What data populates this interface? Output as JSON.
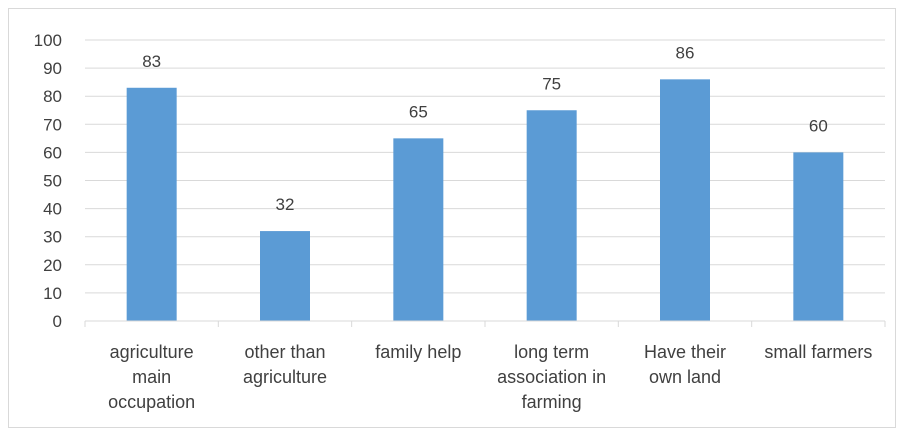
{
  "chart_data": {
    "type": "bar",
    "title": "",
    "xlabel": "",
    "ylabel": "",
    "ylim": [
      0,
      100
    ],
    "yticks": [
      0,
      10,
      20,
      30,
      40,
      50,
      60,
      70,
      80,
      90,
      100
    ],
    "grid": true,
    "legend": "none",
    "bar_color": "#5b9bd5",
    "categories": [
      [
        "agriculture",
        "main",
        "occupation"
      ],
      [
        "other than",
        "agriculture"
      ],
      [
        "family help"
      ],
      [
        "long term",
        "association in",
        "farming"
      ],
      [
        "Have their",
        "own land"
      ],
      [
        "small farmers"
      ]
    ],
    "values": [
      83,
      32,
      65,
      75,
      86,
      60
    ],
    "data_labels": [
      "83",
      "32",
      "65",
      "75",
      "86",
      "60"
    ]
  }
}
